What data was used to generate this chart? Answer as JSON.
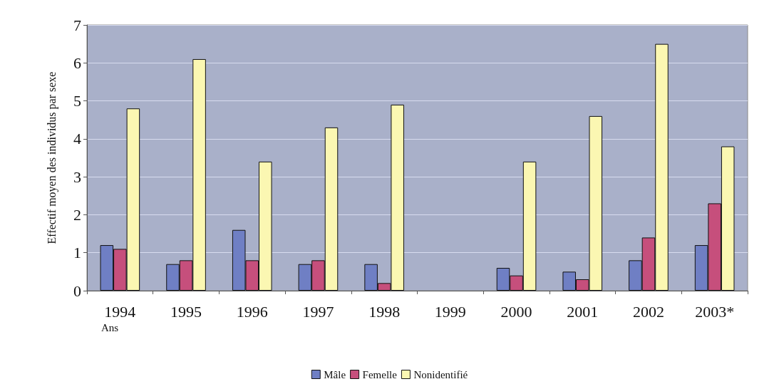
{
  "chart_data": {
    "type": "bar",
    "xlabel": "Ans",
    "ylabel": "Effectif moyen des individus par sexe",
    "categories": [
      "1994",
      "1995",
      "1996",
      "1997",
      "1998",
      "1999",
      "2000",
      "2001",
      "2002",
      "2003*"
    ],
    "series": [
      {
        "name": "Mâle",
        "color": "#6f7fc4",
        "values": [
          1.2,
          0.7,
          1.6,
          0.7,
          0.7,
          0,
          0.6,
          0.5,
          0.8,
          1.2
        ]
      },
      {
        "name": "Femelle",
        "color": "#c64f7c",
        "values": [
          1.1,
          0.8,
          0.8,
          0.8,
          0.2,
          0,
          0.4,
          0.3,
          1.4,
          2.3
        ]
      },
      {
        "name": "Nonidentifié",
        "color": "#fbf7b2",
        "values": [
          4.8,
          6.1,
          3.4,
          4.3,
          4.9,
          0,
          3.4,
          4.6,
          6.5,
          3.8
        ]
      }
    ],
    "ylim": [
      0,
      7
    ],
    "yticks": [
      0,
      1,
      2,
      3,
      4,
      5,
      6,
      7
    ],
    "grid": "y",
    "legend": "bottom"
  }
}
